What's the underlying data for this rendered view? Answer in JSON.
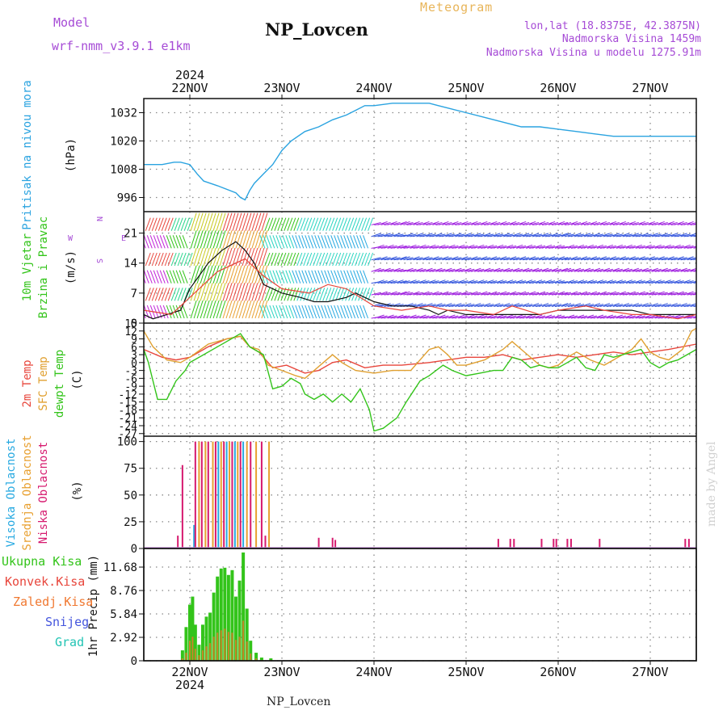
{
  "header": {
    "model_label": "Model",
    "model_name": "wrf-nmm_v3.9.1  e1km",
    "station": "NP_Lovcen",
    "product": "Meteogram",
    "lonlat": "lon,lat (18.8375E, 42.3875N)",
    "elevation": "Nadmorska Visina 1459m",
    "model_elevation": "Nadmorska Visina u modelu 1275.91m"
  },
  "footer_station": "NP_Lovcen",
  "watermark": "made by Angel",
  "colors": {
    "pressure": "#2aa3e0",
    "temp2m": "#e8463c",
    "sfc_temp": "#e0a030",
    "dewpoint": "#33c41a",
    "wind_label": "#33c41a",
    "wind_sub": "#a64bd6",
    "cloud_high": "#27a9e1",
    "cloud_mid": "#e8a030",
    "cloud_low": "#d6196e",
    "precip_total": "#33c41a",
    "precip_conv": "#e8463c",
    "precip_frz": "#f07830",
    "precip_snow": "#4455dd",
    "precip_grad": "#22c4b4"
  },
  "time_axis": {
    "top_year": "2024",
    "bottom_year": "2024",
    "ticks": [
      "22NOV",
      "23NOV",
      "24NOV",
      "25NOV",
      "26NOV",
      "27NOV"
    ],
    "start_day": 21.5,
    "end_day": 27.5
  },
  "chart_data": [
    {
      "type": "line",
      "name": "pressure",
      "ylabel_main": "Pritisak na nivou mora",
      "unit": "(hPa)",
      "ylim": [
        990,
        1038
      ],
      "yticks": [
        996,
        1008,
        1020,
        1032
      ],
      "x": [
        21.5,
        21.7,
        21.83,
        21.9,
        22.0,
        22.08,
        22.15,
        22.3,
        22.5,
        22.55,
        22.6,
        22.65,
        22.7,
        22.8,
        22.9,
        23.0,
        23.1,
        23.25,
        23.4,
        23.55,
        23.7,
        23.8,
        23.9,
        24.0,
        24.2,
        24.4,
        24.6,
        24.7,
        24.8,
        25.0,
        25.2,
        25.4,
        25.6,
        25.8,
        26.0,
        26.2,
        26.4,
        26.6,
        26.8,
        27.0,
        27.2,
        27.4,
        27.5
      ],
      "y": [
        1010,
        1010,
        1011,
        1011,
        1010,
        1006,
        1003,
        1001,
        998,
        996,
        995,
        999,
        1002,
        1006,
        1010,
        1016,
        1020,
        1024,
        1026,
        1029,
        1031,
        1033,
        1035,
        1035,
        1036,
        1036,
        1036,
        1035,
        1034,
        1032,
        1030,
        1028,
        1026,
        1026,
        1025,
        1024,
        1023,
        1022,
        1022,
        1022,
        1022,
        1022,
        1022
      ]
    },
    {
      "type": "line",
      "name": "wind",
      "ylabel_main": "10m Vjetar",
      "ylabel_sub": "Brzina i Pravac",
      "unit": "(m/s)",
      "compass": "N",
      "compass_w": "W",
      "compass_e": "E",
      "compass_s": "S",
      "ylim": [
        0,
        26
      ],
      "yticks": [
        0,
        7,
        14,
        21
      ],
      "x": [
        21.5,
        21.6,
        21.75,
        21.9,
        22.0,
        22.1,
        22.2,
        22.35,
        22.5,
        22.6,
        22.7,
        22.8,
        23.0,
        23.2,
        23.35,
        23.5,
        23.7,
        23.8,
        23.9,
        24.0,
        24.2,
        24.4,
        24.6,
        24.7,
        24.8,
        25.0,
        25.2,
        25.4,
        25.6,
        25.8,
        26.0,
        26.2,
        26.4,
        26.6,
        26.8,
        27.0,
        27.2,
        27.5
      ],
      "y": [
        2,
        1,
        2,
        3,
        8,
        11,
        14,
        17,
        19,
        17,
        14,
        9,
        7,
        6,
        5,
        5,
        6,
        7,
        6,
        5,
        4,
        4,
        3,
        2,
        3,
        2,
        2,
        2,
        2,
        2,
        3,
        3,
        3,
        3,
        3,
        2,
        2,
        2
      ],
      "gust_x": [
        21.5,
        21.8,
        22.0,
        22.3,
        22.6,
        22.8,
        23.0,
        23.3,
        23.5,
        23.7,
        24.0,
        24.3,
        24.6,
        24.8,
        25.0,
        25.3,
        25.5,
        25.8,
        26.0,
        26.3,
        26.5,
        26.8,
        27.0,
        27.3,
        27.5
      ],
      "gust_y": [
        3,
        2,
        6,
        12,
        15,
        11,
        8,
        7,
        9,
        8,
        4,
        3,
        4,
        3,
        3,
        2,
        4,
        2,
        3,
        4,
        3,
        2,
        2,
        1,
        2
      ]
    },
    {
      "type": "line",
      "name": "temperature",
      "ylabel_t2m": "2m Temp",
      "ylabel_sfc": "SFC Temp",
      "ylabel_dew": "dewpt Temp",
      "unit": "(C)",
      "ylim": [
        -28,
        15
      ],
      "yticks": [
        -27,
        -24,
        -21,
        -18,
        -15,
        -12,
        -9,
        -6,
        -3,
        0,
        3,
        6,
        9,
        12,
        15
      ],
      "series": [
        {
          "name": "2m",
          "x": [
            21.5,
            21.7,
            21.85,
            22.0,
            22.2,
            22.4,
            22.55,
            22.65,
            22.75,
            22.9,
            23.05,
            23.25,
            23.4,
            23.55,
            23.7,
            23.9,
            24.1,
            24.3,
            24.6,
            24.8,
            25.0,
            25.2,
            25.4,
            25.6,
            25.8,
            26.0,
            26.2,
            26.4,
            26.6,
            26.8,
            27.0,
            27.2,
            27.5
          ],
          "y": [
            5,
            2,
            1,
            2,
            6,
            9,
            10,
            6,
            4,
            -2,
            -1,
            -4,
            -3,
            0,
            1,
            -2,
            -1,
            -1,
            0,
            1,
            2,
            2,
            3,
            1,
            2,
            3,
            2,
            3,
            4,
            3,
            4,
            5,
            7
          ]
        },
        {
          "name": "SFC",
          "x": [
            21.5,
            21.6,
            21.75,
            21.9,
            22.0,
            22.2,
            22.4,
            22.55,
            22.65,
            22.75,
            22.85,
            23.0,
            23.15,
            23.25,
            23.35,
            23.45,
            23.55,
            23.65,
            23.8,
            24.0,
            24.2,
            24.4,
            24.5,
            24.6,
            24.7,
            24.8,
            24.9,
            25.0,
            25.2,
            25.4,
            25.5,
            25.6,
            25.8,
            25.9,
            26.0,
            26.1,
            26.2,
            26.35,
            26.5,
            26.6,
            26.8,
            26.9,
            27.0,
            27.1,
            27.2,
            27.35,
            27.45,
            27.5
          ],
          "y": [
            12,
            6,
            1,
            0,
            2,
            7,
            9,
            10,
            6,
            5,
            -1,
            -3,
            -5,
            -6,
            -3,
            0,
            3,
            0,
            -3,
            -4,
            -3,
            -3,
            1,
            5,
            6,
            3,
            -1,
            -1,
            1,
            5,
            8,
            5,
            -1,
            -2,
            -1,
            2,
            4,
            1,
            -1,
            1,
            5,
            9,
            4,
            2,
            1,
            5,
            12,
            13
          ]
        },
        {
          "name": "dewpt",
          "x": [
            21.5,
            21.55,
            21.65,
            21.75,
            21.85,
            21.95,
            22.0,
            22.2,
            22.4,
            22.55,
            22.65,
            22.8,
            22.9,
            23.0,
            23.1,
            23.2,
            23.25,
            23.35,
            23.45,
            23.55,
            23.65,
            23.75,
            23.85,
            23.95,
            24.0,
            24.1,
            24.25,
            24.35,
            24.5,
            24.6,
            24.75,
            24.85,
            25.0,
            25.15,
            25.3,
            25.4,
            25.5,
            25.6,
            25.7,
            25.8,
            25.9,
            26.0,
            26.1,
            26.2,
            26.3,
            26.4,
            26.5,
            26.6,
            26.8,
            26.9,
            27.0,
            27.1,
            27.2,
            27.3,
            27.4,
            27.5
          ],
          "y": [
            5,
            0,
            -14,
            -14,
            -7,
            -3,
            0,
            4,
            8,
            11,
            6,
            3,
            -10,
            -9,
            -6,
            -8,
            -12,
            -14,
            -12,
            -15,
            -12,
            -15,
            -10,
            -18,
            -26,
            -25,
            -21,
            -15,
            -7,
            -5,
            -1,
            -3,
            -5,
            -4,
            -3,
            -3,
            2,
            1,
            -2,
            -1,
            -2,
            -2,
            0,
            2,
            -2,
            -3,
            3,
            2,
            4,
            5,
            0,
            -2,
            0,
            1,
            3,
            5
          ]
        }
      ]
    },
    {
      "type": "bar",
      "name": "clouds",
      "ylabel_high": "Visoka Oblacnost",
      "ylabel_mid": "Srednja Oblacnost",
      "ylabel_low": "Niska Oblacnost",
      "unit": "(%)",
      "ylim": [
        0,
        105
      ],
      "yticks": [
        0,
        25,
        50,
        75,
        100
      ],
      "bars": [
        {
          "x": 21.92,
          "layer": "low",
          "v": 78
        },
        {
          "x": 21.87,
          "layer": "low",
          "v": 12
        },
        {
          "x": 22.05,
          "layer": "high",
          "v": 22
        },
        {
          "x": 22.06,
          "layer": "low",
          "v": 100
        },
        {
          "x": 22.1,
          "layer": "mid",
          "v": 100
        },
        {
          "x": 22.13,
          "layer": "low",
          "v": 100
        },
        {
          "x": 22.17,
          "layer": "mid",
          "v": 100
        },
        {
          "x": 22.2,
          "layer": "low",
          "v": 100
        },
        {
          "x": 22.25,
          "layer": "mid",
          "v": 100
        },
        {
          "x": 22.28,
          "layer": "low",
          "v": 100
        },
        {
          "x": 22.31,
          "layer": "high",
          "v": 100
        },
        {
          "x": 22.34,
          "layer": "mid",
          "v": 100
        },
        {
          "x": 22.37,
          "layer": "low",
          "v": 100
        },
        {
          "x": 22.4,
          "layer": "high",
          "v": 100
        },
        {
          "x": 22.43,
          "layer": "mid",
          "v": 100
        },
        {
          "x": 22.46,
          "layer": "low",
          "v": 100
        },
        {
          "x": 22.49,
          "layer": "high",
          "v": 100
        },
        {
          "x": 22.52,
          "layer": "mid",
          "v": 100
        },
        {
          "x": 22.55,
          "layer": "low",
          "v": 100
        },
        {
          "x": 22.58,
          "layer": "high",
          "v": 100
        },
        {
          "x": 22.62,
          "layer": "mid",
          "v": 100
        },
        {
          "x": 22.66,
          "layer": "low",
          "v": 100
        },
        {
          "x": 22.72,
          "layer": "mid",
          "v": 100
        },
        {
          "x": 22.78,
          "layer": "low",
          "v": 100
        },
        {
          "x": 22.86,
          "layer": "mid",
          "v": 100
        },
        {
          "x": 22.82,
          "layer": "low",
          "v": 12
        },
        {
          "x": 23.4,
          "layer": "low",
          "v": 10
        },
        {
          "x": 23.55,
          "layer": "low",
          "v": 10
        },
        {
          "x": 23.58,
          "layer": "low",
          "v": 8
        },
        {
          "x": 25.35,
          "layer": "low",
          "v": 9
        },
        {
          "x": 25.48,
          "layer": "low",
          "v": 9
        },
        {
          "x": 25.52,
          "layer": "low",
          "v": 9
        },
        {
          "x": 25.82,
          "layer": "low",
          "v": 9
        },
        {
          "x": 25.95,
          "layer": "low",
          "v": 9
        },
        {
          "x": 25.98,
          "layer": "low",
          "v": 9
        },
        {
          "x": 26.1,
          "layer": "low",
          "v": 9
        },
        {
          "x": 26.14,
          "layer": "low",
          "v": 9
        },
        {
          "x": 26.45,
          "layer": "low",
          "v": 9
        },
        {
          "x": 27.38,
          "layer": "low",
          "v": 9
        },
        {
          "x": 27.42,
          "layer": "low",
          "v": 9
        }
      ]
    },
    {
      "type": "bar",
      "name": "precipitation",
      "ylabel_main": "1hr Precip (mm)",
      "legend": [
        "Ukupna Kisa",
        "Konvek.Kisa",
        "Zaledj.Kisa",
        "Snijeg",
        "Grad"
      ],
      "ylim": [
        0,
        14.0
      ],
      "yticks": [
        0,
        2.92,
        5.84,
        8.76,
        11.68
      ],
      "ytick_labels": [
        "0",
        "2.92",
        "5.84",
        "8.76",
        "11.68"
      ],
      "x": [
        21.92,
        21.96,
        22.0,
        22.03,
        22.06,
        22.1,
        22.14,
        22.18,
        22.22,
        22.26,
        22.3,
        22.34,
        22.38,
        22.42,
        22.46,
        22.5,
        22.54,
        22.58,
        22.62,
        22.66,
        22.72,
        22.78,
        22.88
      ],
      "total": [
        1.3,
        4.2,
        7.0,
        8.0,
        4.5,
        2.0,
        4.5,
        5.5,
        6.0,
        8.5,
        10.5,
        11.5,
        11.6,
        10.7,
        11.3,
        8.0,
        10.0,
        13.5,
        6.5,
        2.5,
        1.0,
        0.4,
        0.3
      ],
      "convective": [
        0.3,
        1.0,
        2.5,
        3.0,
        1.5,
        0.7,
        1.3,
        1.8,
        2.2,
        3.0,
        3.5,
        3.8,
        4.0,
        3.6,
        3.5,
        2.6,
        3.0,
        5.0,
        2.4,
        0.9,
        0.3,
        0.1,
        0.1
      ]
    }
  ]
}
